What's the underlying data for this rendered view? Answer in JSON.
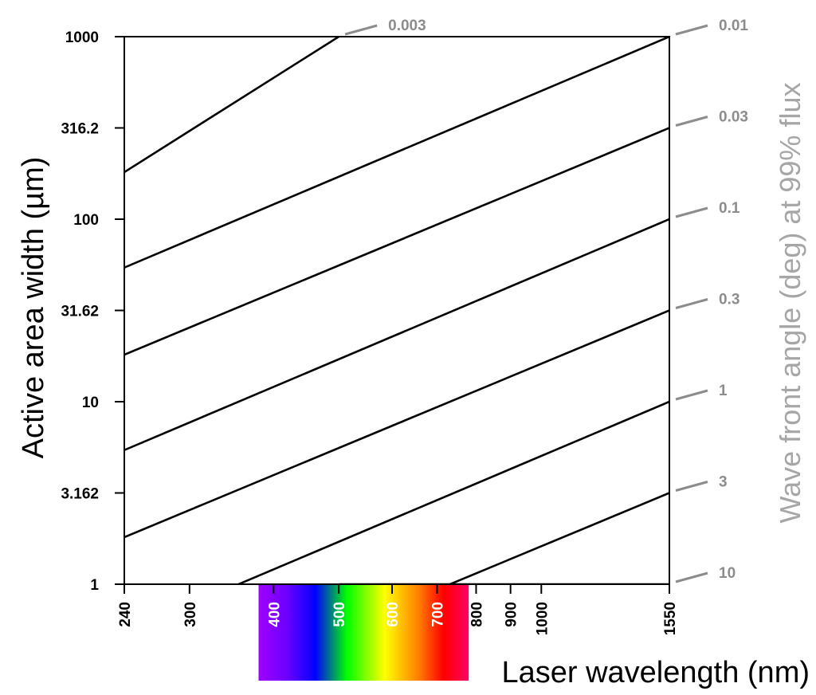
{
  "chart_data": {
    "type": "line",
    "xlabel": "Laser wavelength (nm)",
    "ylabel": "Active area width (µm)",
    "y2label": "Wave front angle (deg) at 99% flux",
    "x_scale": "log",
    "y_scale": "log",
    "xlim": [
      240,
      1550
    ],
    "ylim": [
      1,
      1000
    ],
    "grid": false,
    "x_ticks": [
      {
        "value": 240,
        "label": "240"
      },
      {
        "value": 300,
        "label": "300"
      },
      {
        "value": 400,
        "label": "400"
      },
      {
        "value": 500,
        "label": "500"
      },
      {
        "value": 600,
        "label": "600"
      },
      {
        "value": 700,
        "label": "700"
      },
      {
        "value": 800,
        "label": "800"
      },
      {
        "value": 900,
        "label": "900"
      },
      {
        "value": 1000,
        "label": "1000"
      },
      {
        "value": 1550,
        "label": "1550"
      }
    ],
    "y_ticks": [
      {
        "value": 1,
        "label": "1"
      },
      {
        "value": 3.162,
        "label": "3.162"
      },
      {
        "value": 10,
        "label": "10"
      },
      {
        "value": 31.62,
        "label": "31.62"
      },
      {
        "value": 100,
        "label": "100"
      },
      {
        "value": 316.2,
        "label": "316.2"
      },
      {
        "value": 1000,
        "label": "1000"
      }
    ],
    "spectrum_band": {
      "x_start": 380,
      "x_end": 780
    },
    "colors": {
      "lines": "#000000",
      "angle_labels": "#8c8c8c",
      "right_title": "#a6a6a6",
      "spectrum_stops": [
        "#a000ff",
        "#6a00ff",
        "#0000ff",
        "#00ff00",
        "#ffff00",
        "#ff8000",
        "#ff0000",
        "#ff0066"
      ]
    },
    "series": [
      {
        "name": "0.003",
        "points": [
          [
            240,
            181
          ],
          [
            500,
            1000
          ]
        ]
      },
      {
        "name": "0.01",
        "points": [
          [
            240,
            54.3
          ],
          [
            1550,
            1000
          ]
        ]
      },
      {
        "name": "0.03",
        "points": [
          [
            240,
            18.1
          ],
          [
            1550,
            316.2
          ]
        ]
      },
      {
        "name": "0.1",
        "points": [
          [
            240,
            5.43
          ],
          [
            1550,
            100
          ]
        ]
      },
      {
        "name": "0.3",
        "points": [
          [
            240,
            1.81
          ],
          [
            1550,
            31.62
          ]
        ]
      },
      {
        "name": "1",
        "points": [
          [
            240,
            0.543
          ],
          [
            1550,
            10
          ]
        ]
      },
      {
        "name": "3",
        "points": [
          [
            240,
            0.181
          ],
          [
            1550,
            3.162
          ]
        ]
      },
      {
        "name": "10",
        "points": [
          [
            500,
            1
          ],
          [
            1550,
            1
          ]
        ]
      }
    ]
  }
}
